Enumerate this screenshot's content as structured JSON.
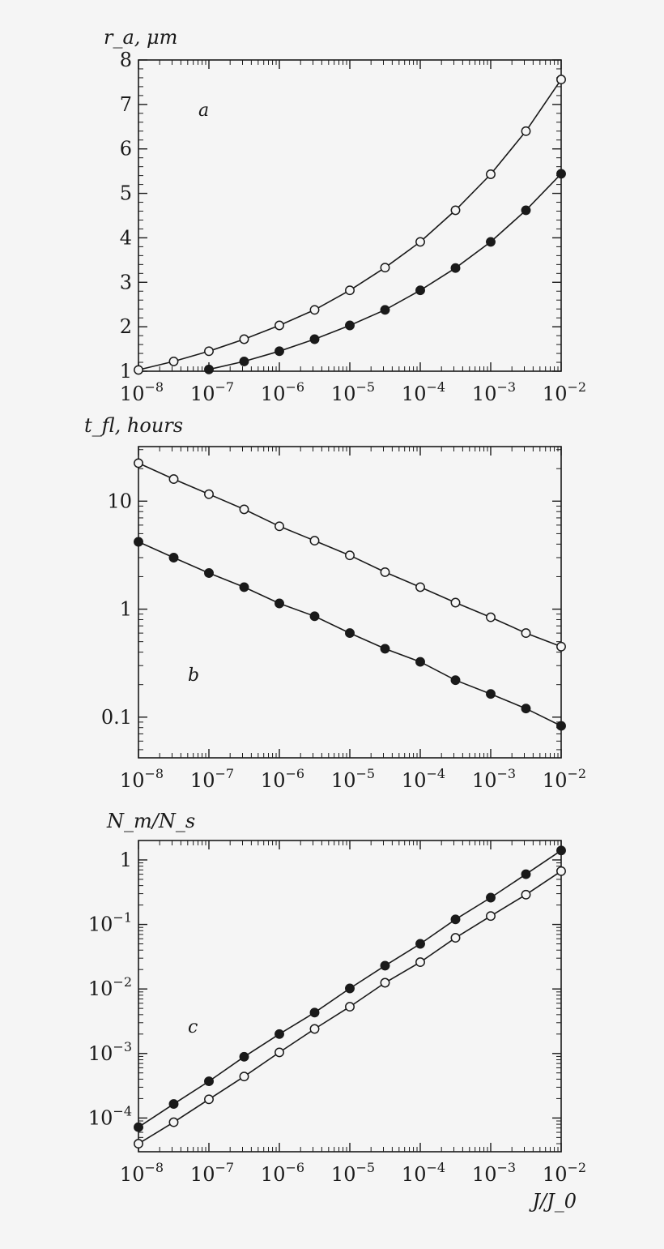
{
  "chart_data": [
    {
      "type": "line",
      "panel_label": "a",
      "ylabel": "r_a, μm",
      "xscale": "log",
      "yscale": "linear",
      "x_exponent_ticks": [
        -8,
        -7,
        -6,
        -5,
        -4,
        -3,
        -2
      ],
      "xlim": [
        1e-08,
        0.01
      ],
      "ylim": [
        1,
        8
      ],
      "y_ticks": [
        "1",
        "2",
        "3",
        "4",
        "5",
        "6",
        "7",
        "8"
      ],
      "series": [
        {
          "marker": "open-circle",
          "x": [
            1e-08,
            3.16e-08,
            1e-07,
            3.16e-07,
            1e-06,
            3.16e-06,
            1e-05,
            3.16e-05,
            0.0001,
            0.000316,
            0.001,
            0.00316,
            0.01
          ],
          "y": [
            1.03,
            1.22,
            1.45,
            1.72,
            2.03,
            2.38,
            2.82,
            3.33,
            3.91,
            4.62,
            5.43,
            6.4,
            7.56
          ]
        },
        {
          "marker": "filled-circle",
          "x": [
            1e-07,
            3.16e-07,
            1e-06,
            3.16e-06,
            1e-05,
            3.16e-05,
            0.0001,
            0.000316,
            0.001,
            0.00316,
            0.01
          ],
          "y": [
            1.04,
            1.22,
            1.45,
            1.72,
            2.03,
            2.38,
            2.82,
            3.32,
            3.91,
            4.62,
            5.44
          ]
        }
      ]
    },
    {
      "type": "line",
      "panel_label": "b",
      "ylabel": "t_fl, hours",
      "xscale": "log",
      "yscale": "log",
      "x_exponent_ticks": [
        -8,
        -7,
        -6,
        -5,
        -4,
        -3,
        -2
      ],
      "xlim": [
        1e-08,
        0.01
      ],
      "ylim": [
        0.042,
        32
      ],
      "y_ticks": [
        "0.1",
        "1",
        "10"
      ],
      "series": [
        {
          "marker": "open-circle",
          "x": [
            1e-08,
            3.16e-08,
            1e-07,
            3.16e-07,
            1e-06,
            3.16e-06,
            1e-05,
            3.16e-05,
            0.0001,
            0.000316,
            0.001,
            0.00316,
            0.01
          ],
          "y": [
            22.5,
            16,
            11.6,
            8.4,
            5.85,
            4.3,
            3.15,
            2.2,
            1.6,
            1.15,
            0.84,
            0.6,
            0.45
          ]
        },
        {
          "marker": "filled-circle",
          "x": [
            1e-08,
            3.16e-08,
            1e-07,
            3.16e-07,
            1e-06,
            3.16e-06,
            1e-05,
            3.16e-05,
            0.0001,
            0.000316,
            0.001,
            0.00316,
            0.01
          ],
          "y": [
            4.2,
            3.0,
            2.16,
            1.6,
            1.13,
            0.86,
            0.6,
            0.43,
            0.325,
            0.22,
            0.164,
            0.12,
            0.083
          ]
        }
      ]
    },
    {
      "type": "line",
      "panel_label": "c",
      "ylabel": "N_m/N_s",
      "xlabel": "J/J_0",
      "xscale": "log",
      "yscale": "log",
      "x_exponent_ticks": [
        -8,
        -7,
        -6,
        -5,
        -4,
        -3,
        -2
      ],
      "xlim": [
        1e-08,
        0.01
      ],
      "ylim": [
        3e-05,
        2
      ],
      "y_ticks": [
        "1",
        "10^-1",
        "10^-2",
        "10^-3",
        "10^-4"
      ],
      "series": [
        {
          "marker": "filled-circle",
          "x": [
            1e-08,
            3.16e-08,
            1e-07,
            3.16e-07,
            1e-06,
            3.16e-06,
            1e-05,
            3.16e-05,
            0.0001,
            0.000316,
            0.001,
            0.00316,
            0.01
          ],
          "y": [
            7.2e-05,
            0.000165,
            0.00037,
            0.00089,
            0.002,
            0.0043,
            0.0102,
            0.023,
            0.05,
            0.12,
            0.26,
            0.6,
            1.4
          ]
        },
        {
          "marker": "open-circle",
          "x": [
            1e-08,
            3.16e-08,
            1e-07,
            3.16e-07,
            1e-06,
            3.16e-06,
            1e-05,
            3.16e-05,
            0.0001,
            0.000316,
            0.001,
            0.00316,
            0.01
          ],
          "y": [
            4e-05,
            8.6e-05,
            0.000195,
            0.00044,
            0.00104,
            0.0024,
            0.0053,
            0.0125,
            0.026,
            0.062,
            0.135,
            0.29,
            0.67
          ]
        }
      ]
    }
  ]
}
